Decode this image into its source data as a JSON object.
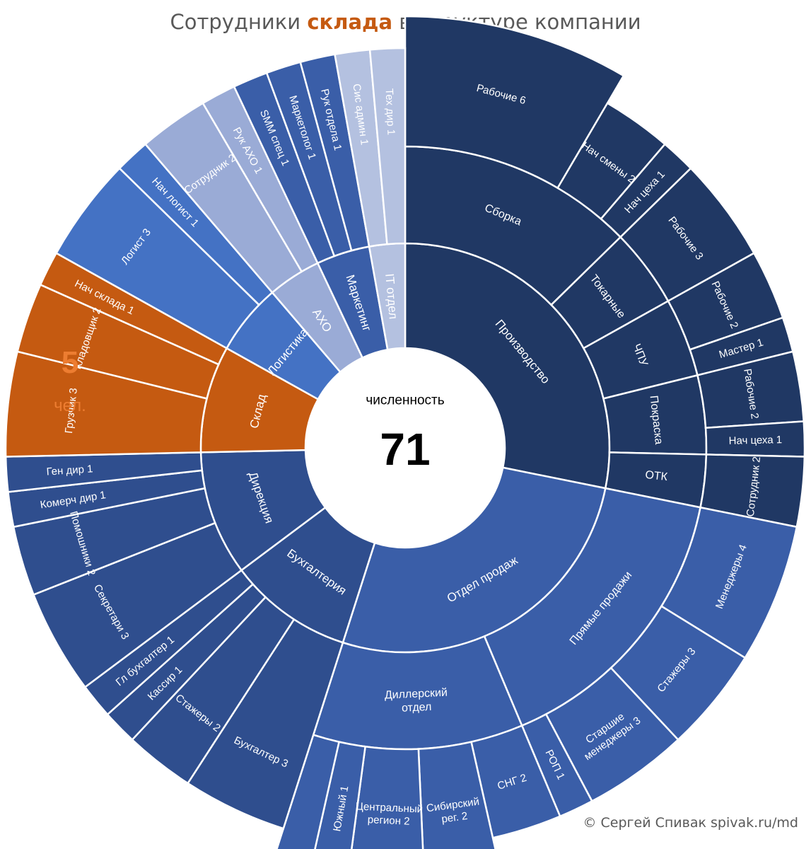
{
  "title": {
    "before": "Сотрудники ",
    "highlight": "склада",
    "after": " в структуре компании"
  },
  "side_note": {
    "count": "5",
    "unit": "чел."
  },
  "copyright": "© Сергей Спивак   spivak.ru/md",
  "chart_data": {
    "type": "sunburst",
    "title": "Сотрудники склада в структуре компании",
    "center_label": "численность",
    "total": 71,
    "total_text": "71",
    "colors": {
      "production": "#203864",
      "sales": "#3a5ea8",
      "admin": "#2f4e8e",
      "warehouse": "#c55a11",
      "logistics": "#4472c4",
      "axo": "#9aabd6",
      "marketing": "#3a5ea8",
      "it": "#b4c1e0"
    },
    "segments": [
      {
        "name": "Производство",
        "color": "production",
        "children": [
          {
            "name": "Сборка",
            "children": [
              {
                "name": "Рабочие 6",
                "value": 6,
                "extended": true
              },
              {
                "name": "Нач смены 2",
                "value": 2
              },
              {
                "name": "Нач цеха 1",
                "value": 1
              }
            ]
          },
          {
            "name": "Токарные",
            "children": [
              {
                "name": "Рабочие 3",
                "value": 3
              }
            ]
          },
          {
            "name": "ЧПУ",
            "children": [
              {
                "name": "Рабочие 2",
                "value": 2
              },
              {
                "name": "Мастер 1",
                "value": 1
              }
            ]
          },
          {
            "name": "Покраска",
            "children": [
              {
                "name": "Рабочие 2",
                "value": 2
              },
              {
                "name": "Нач цеха 1",
                "value": 1
              }
            ]
          },
          {
            "name": "ОТК",
            "children": [
              {
                "name": "Сотрудник 2",
                "value": 2
              }
            ]
          }
        ]
      },
      {
        "name": "Отдел продаж",
        "color": "sales",
        "children": [
          {
            "name": "Прямые продажи",
            "children": [
              {
                "name": "Менеджеры 4",
                "value": 4
              },
              {
                "name": "Стажеры 3",
                "value": 3
              },
              {
                "name": "Старшие менеджеры 3",
                "value": 3
              },
              {
                "name": "РОП 1",
                "value": 1
              }
            ]
          },
          {
            "name": "Диллерский отдел",
            "children": [
              {
                "name": "СНГ 2",
                "value": 2
              },
              {
                "name": "Сибирский рег. 2",
                "value": 2,
                "extended": true
              },
              {
                "name": "Центральный регион 2",
                "value": 2,
                "extended": true
              },
              {
                "name": "Южный 1",
                "value": 1,
                "extended": true
              },
              {
                "name": "",
                "value": 1,
                "extended": true
              }
            ]
          }
        ]
      },
      {
        "name": "Бухгалтерия",
        "color": "admin",
        "children": [
          {
            "name": "Бухгалтер 3",
            "value": 3
          },
          {
            "name": "Стажеры 2",
            "value": 2
          },
          {
            "name": "Кассир 1",
            "value": 1
          },
          {
            "name": "Гл бухгалтер 1",
            "value": 1
          }
        ]
      },
      {
        "name": "Дирекция",
        "color": "admin",
        "children": [
          {
            "name": "Секретари 3",
            "value": 3
          },
          {
            "name": "Помошники 2",
            "value": 2
          },
          {
            "name": "Комерч дир 1",
            "value": 1
          },
          {
            "name": "Ген дир 1",
            "value": 1
          }
        ]
      },
      {
        "name": "Склад",
        "color": "warehouse",
        "children": [
          {
            "name": "Грузчик 3",
            "value": 3
          },
          {
            "name": "Кладовщик 2",
            "value": 2
          },
          {
            "name": "Нач склада 1",
            "value": 1
          }
        ]
      },
      {
        "name": "Логистика",
        "color": "logistics",
        "children": [
          {
            "name": "Логист 3",
            "value": 3
          },
          {
            "name": "Нач логист 1",
            "value": 1
          }
        ]
      },
      {
        "name": "АХО",
        "color": "axo",
        "children": [
          {
            "name": "Сотрудник 2",
            "value": 2
          },
          {
            "name": "Рук АХО 1",
            "value": 1
          }
        ]
      },
      {
        "name": "Маркетинг",
        "color": "marketing",
        "children": [
          {
            "name": "SMM спец 1",
            "value": 1
          },
          {
            "name": "Маркетолог 1",
            "value": 1
          },
          {
            "name": "Рук отдела 1",
            "value": 1
          }
        ]
      },
      {
        "name": "IT отдел",
        "color": "it",
        "children": [
          {
            "name": "Сис админ 1",
            "value": 1
          },
          {
            "name": "Тех дир 1",
            "value": 1
          }
        ]
      }
    ]
  }
}
